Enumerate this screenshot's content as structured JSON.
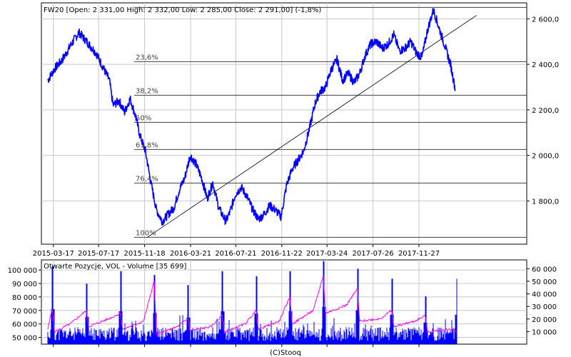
{
  "title": "FW20 [Open: 2 331,00  High: 2 332,00  Low: 2 285,00  Close: 2 291,00] (-1,8%)",
  "copyright": "(C)Stooq",
  "colors": {
    "price": "#0000ff",
    "volume": "#0000ff",
    "open_interest": "#ff00ff",
    "grid": "#c8c8c8",
    "fib": "#404040"
  },
  "chart_data": [
    {
      "type": "line",
      "x_ticks": [
        "2015-03-17",
        "2015-07-17",
        "2015-11-18",
        "2016-03-21",
        "2016-07-21",
        "2016-11-22",
        "2017-03-24",
        "2017-07-26",
        "2017-11-27"
      ],
      "y_ticks": [
        "2 600,0",
        "2 400,0",
        "2 200,0",
        "2 000,0",
        "1 800,0"
      ],
      "ylim": [
        1610,
        2670
      ],
      "series": [
        {
          "x": [
            "2015-03-02",
            "2015-03-20",
            "2015-04-10",
            "2015-05-05",
            "2015-05-25",
            "2015-06-15",
            "2015-07-10",
            "2015-07-25",
            "2015-08-15",
            "2015-08-25",
            "2015-09-10",
            "2015-09-25",
            "2015-10-10",
            "2015-10-25",
            "2015-11-05",
            "2015-11-20",
            "2015-12-05",
            "2015-12-20",
            "2016-01-05",
            "2016-01-20",
            "2016-02-05",
            "2016-02-20",
            "2016-03-05",
            "2016-03-20",
            "2016-04-05",
            "2016-04-20",
            "2016-05-05",
            "2016-05-20",
            "2016-06-05",
            "2016-06-24",
            "2016-07-05",
            "2016-07-20",
            "2016-08-05",
            "2016-08-20",
            "2016-09-05",
            "2016-09-20",
            "2016-10-05",
            "2016-10-20",
            "2016-11-05",
            "2016-11-20",
            "2016-12-05",
            "2016-12-20",
            "2017-01-05",
            "2017-01-20",
            "2017-02-05",
            "2017-02-20",
            "2017-03-05",
            "2017-03-20",
            "2017-04-05",
            "2017-04-20",
            "2017-05-05",
            "2017-05-20",
            "2017-06-05",
            "2017-06-20",
            "2017-07-05",
            "2017-07-20",
            "2017-08-05",
            "2017-08-20",
            "2017-09-05",
            "2017-09-20",
            "2017-10-05",
            "2017-10-20",
            "2017-11-05",
            "2017-11-20",
            "2017-12-05",
            "2017-12-20",
            "2018-01-05",
            "2018-01-20",
            "2018-02-05",
            "2018-02-20",
            "2018-03-05"
          ],
          "y": [
            2330,
            2380,
            2420,
            2490,
            2540,
            2500,
            2450,
            2400,
            2330,
            2220,
            2240,
            2190,
            2250,
            2170,
            2090,
            2020,
            1880,
            1760,
            1710,
            1740,
            1770,
            1850,
            1900,
            2000,
            1960,
            1900,
            1810,
            1880,
            1770,
            1710,
            1750,
            1830,
            1860,
            1820,
            1760,
            1720,
            1740,
            1780,
            1760,
            1730,
            1870,
            1940,
            1980,
            2020,
            2120,
            2230,
            2280,
            2300,
            2380,
            2420,
            2330,
            2360,
            2320,
            2360,
            2440,
            2490,
            2500,
            2470,
            2490,
            2530,
            2460,
            2470,
            2500,
            2450,
            2430,
            2550,
            2640,
            2560,
            2480,
            2400,
            2290
          ]
        }
      ],
      "fibonacci_labels": [
        "23,6%",
        "38,2%",
        "50%",
        "61,8%",
        "76,4%",
        "100%"
      ],
      "fibonacci_high": 2650,
      "fibonacci_low": 1640,
      "trendline": {
        "x": [
          "2015-11-25",
          "2018-05-01"
        ],
        "y": [
          1640,
          2615
        ]
      }
    },
    {
      "type": "bar",
      "legend": "Otwarte Pozycje, VOL - Volume [35 699]",
      "left_ticks": [
        "100 000",
        "90 000",
        "80 000",
        "70 000",
        "60 000",
        "50 000"
      ],
      "right_ticks": [
        "60 000",
        "50 000",
        "40 000",
        "30 000",
        "20 000",
        "10 000"
      ],
      "volume_ylim": [
        0,
        67000
      ],
      "oi_ylim": [
        45000,
        107500
      ],
      "volume_spikes": [
        {
          "date": "2015-03-15",
          "v": 62000
        },
        {
          "date": "2015-06-15",
          "v": 48000
        },
        {
          "date": "2015-09-15",
          "v": 58000
        },
        {
          "date": "2015-12-15",
          "v": 55000
        },
        {
          "date": "2016-03-15",
          "v": 47000
        },
        {
          "date": "2016-06-15",
          "v": 58000
        },
        {
          "date": "2016-09-15",
          "v": 54000
        },
        {
          "date": "2016-12-15",
          "v": 58000
        },
        {
          "date": "2017-03-15",
          "v": 66000
        },
        {
          "date": "2017-06-15",
          "v": 60000
        },
        {
          "date": "2017-09-15",
          "v": 52000
        },
        {
          "date": "2017-12-15",
          "v": 38000
        },
        {
          "date": "2018-03-09",
          "v": 52000
        }
      ],
      "open_interest": [
        {
          "x": "2015-03-02",
          "y": 56000
        },
        {
          "x": "2015-03-14",
          "y": 72000
        },
        {
          "x": "2015-03-20",
          "y": 54000
        },
        {
          "x": "2015-05-01",
          "y": 60000
        },
        {
          "x": "2015-06-14",
          "y": 70000
        },
        {
          "x": "2015-06-20",
          "y": 58000
        },
        {
          "x": "2015-08-15",
          "y": 64000
        },
        {
          "x": "2015-09-14",
          "y": 68000
        },
        {
          "x": "2015-09-20",
          "y": 56000
        },
        {
          "x": "2015-11-15",
          "y": 62000
        },
        {
          "x": "2015-12-14",
          "y": 92000
        },
        {
          "x": "2015-12-20",
          "y": 52000
        },
        {
          "x": "2016-02-15",
          "y": 58000
        },
        {
          "x": "2016-03-14",
          "y": 64000
        },
        {
          "x": "2016-03-20",
          "y": 55000
        },
        {
          "x": "2016-05-15",
          "y": 58000
        },
        {
          "x": "2016-06-14",
          "y": 66000
        },
        {
          "x": "2016-06-20",
          "y": 54000
        },
        {
          "x": "2016-08-15",
          "y": 60000
        },
        {
          "x": "2016-09-14",
          "y": 70000
        },
        {
          "x": "2016-09-20",
          "y": 56000
        },
        {
          "x": "2016-11-15",
          "y": 62000
        },
        {
          "x": "2016-12-14",
          "y": 80000
        },
        {
          "x": "2016-12-20",
          "y": 60000
        },
        {
          "x": "2017-02-15",
          "y": 70000
        },
        {
          "x": "2017-03-14",
          "y": 96000
        },
        {
          "x": "2017-03-20",
          "y": 68000
        },
        {
          "x": "2017-05-15",
          "y": 74000
        },
        {
          "x": "2017-06-14",
          "y": 86000
        },
        {
          "x": "2017-06-20",
          "y": 62000
        },
        {
          "x": "2017-08-15",
          "y": 64000
        },
        {
          "x": "2017-09-14",
          "y": 70000
        },
        {
          "x": "2017-09-20",
          "y": 58000
        },
        {
          "x": "2017-11-15",
          "y": 62000
        },
        {
          "x": "2017-12-14",
          "y": 66000
        },
        {
          "x": "2017-12-20",
          "y": 54000
        },
        {
          "x": "2018-02-15",
          "y": 56000
        },
        {
          "x": "2018-03-09",
          "y": 54000
        }
      ]
    }
  ]
}
